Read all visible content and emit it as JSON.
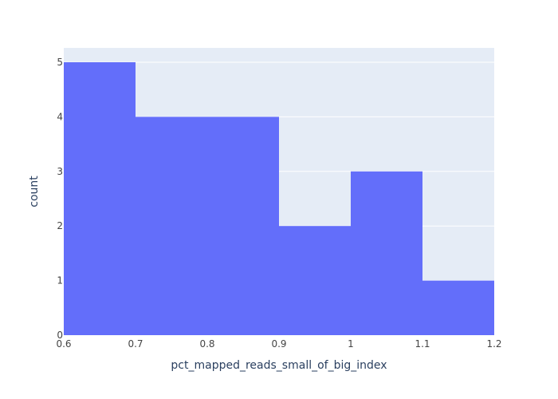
{
  "chart_data": {
    "type": "bar",
    "histogram": true,
    "xlabel": "pct_mapped_reads_small_of_big_index",
    "ylabel": "count",
    "bins": [
      {
        "x0": 0.6,
        "x1": 0.7,
        "count": 5
      },
      {
        "x0": 0.7,
        "x1": 0.8,
        "count": 4
      },
      {
        "x0": 0.8,
        "x1": 0.9,
        "count": 4
      },
      {
        "x0": 0.9,
        "x1": 1.0,
        "count": 2
      },
      {
        "x0": 1.0,
        "x1": 1.1,
        "count": 3
      },
      {
        "x0": 1.1,
        "x1": 1.2,
        "count": 1
      }
    ],
    "xlim": [
      0.6,
      1.2
    ],
    "ylim": [
      0,
      5.263
    ],
    "x_ticks": [
      {
        "value": 0.6,
        "label": "0.6"
      },
      {
        "value": 0.7,
        "label": "0.7"
      },
      {
        "value": 0.8,
        "label": "0.8"
      },
      {
        "value": 0.9,
        "label": "0.9"
      },
      {
        "value": 1.0,
        "label": "1"
      },
      {
        "value": 1.1,
        "label": "1.1"
      },
      {
        "value": 1.2,
        "label": "1.2"
      }
    ],
    "y_ticks": [
      {
        "value": 0,
        "label": "0"
      },
      {
        "value": 1,
        "label": "1"
      },
      {
        "value": 2,
        "label": "2"
      },
      {
        "value": 3,
        "label": "3"
      },
      {
        "value": 4,
        "label": "4"
      },
      {
        "value": 5,
        "label": "5"
      }
    ],
    "grid": true,
    "colors": {
      "bar": "#636efa",
      "plot_background": "#e5ecf6",
      "grid": "#ffffff",
      "text": "#2a3f5f",
      "tick_text": "#444444"
    }
  }
}
